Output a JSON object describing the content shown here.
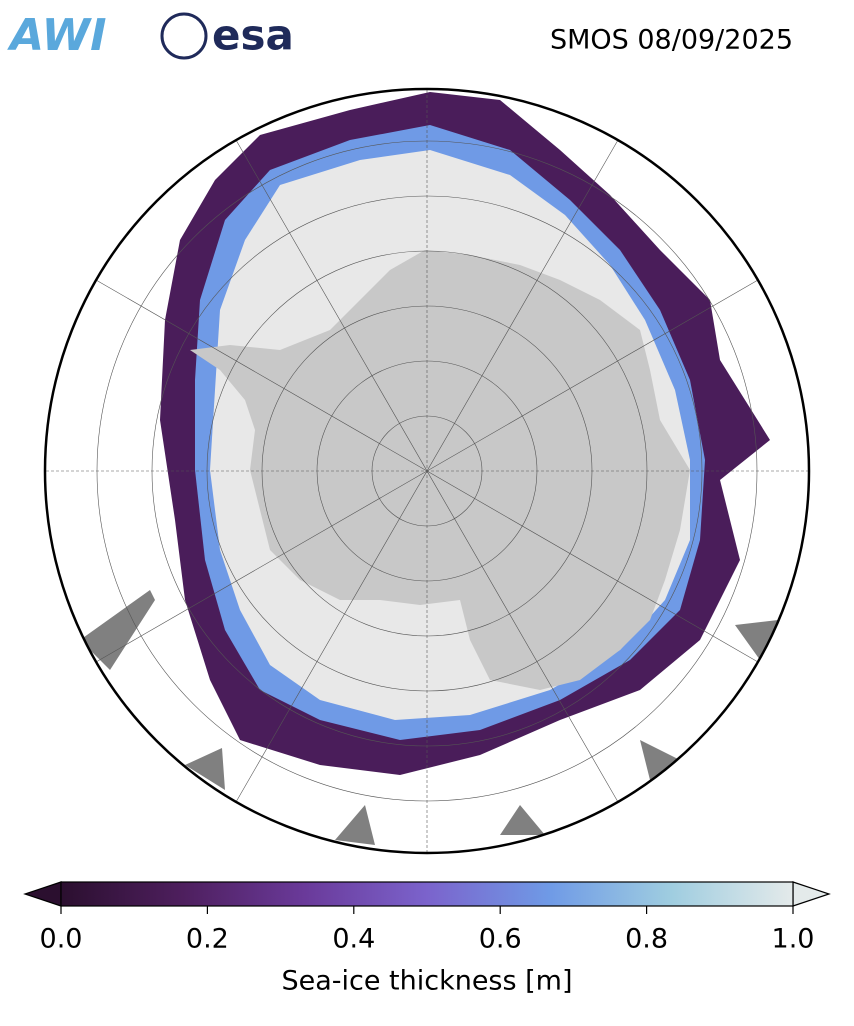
{
  "header": {
    "logos": [
      "AWI",
      "esa"
    ],
    "title": "SMOS 08/09/2025"
  },
  "colorbar": {
    "label": "Sea-ice thickness [m]",
    "lim": [
      0,
      1
    ],
    "ticks": [
      {
        "value": 0,
        "label": "0.0"
      },
      {
        "value": 0.2,
        "label": "0.2"
      },
      {
        "value": 0.4,
        "label": "0.4"
      },
      {
        "value": 0.6,
        "label": "0.6"
      },
      {
        "value": 0.8,
        "label": "0.8"
      },
      {
        "value": 1,
        "label": "1.0"
      }
    ],
    "colors": [
      "#2b0f2f",
      "#4e1f5e",
      "#6a3a9a",
      "#7b63cc",
      "#6f9ae6",
      "#9fcde0",
      "#e4eaea"
    ]
  }
}
